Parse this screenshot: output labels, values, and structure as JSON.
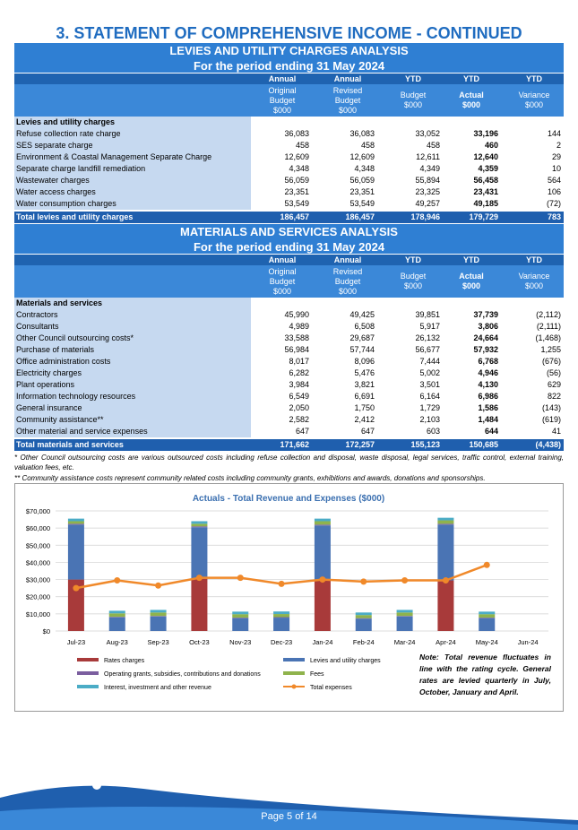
{
  "header": {
    "title": "3. STATEMENT OF COMPREHENSIVE INCOME - CONTINUED"
  },
  "tables": [
    {
      "title": "LEVIES AND UTILITY CHARGES ANALYSIS",
      "subtitle": "For the period ending 31 May 2024",
      "column_groups": [
        "Annual",
        "Annual",
        "YTD",
        "YTD",
        "YTD"
      ],
      "columns": [
        [
          "Original",
          "Budget",
          "$000"
        ],
        [
          "Revised",
          "Budget",
          "$000"
        ],
        [
          "Budget",
          "$000"
        ],
        [
          "Actual",
          "$000"
        ],
        [
          "Variance",
          "$000"
        ]
      ],
      "section": "Levies and utility charges",
      "rows": [
        [
          "Refuse collection rate charge",
          "36,083",
          "36,083",
          "33,052",
          "33,196",
          "144"
        ],
        [
          "SES separate charge",
          "458",
          "458",
          "458",
          "460",
          "2"
        ],
        [
          "Environment & Coastal Management Separate Charge",
          "12,609",
          "12,609",
          "12,611",
          "12,640",
          "29"
        ],
        [
          "Separate charge landfill remediation",
          "4,348",
          "4,348",
          "4,349",
          "4,359",
          "10"
        ],
        [
          "Wastewater charges",
          "56,059",
          "56,059",
          "55,894",
          "56,458",
          "564"
        ],
        [
          "Water access charges",
          "23,351",
          "23,351",
          "23,325",
          "23,431",
          "106"
        ],
        [
          "Water consumption charges",
          "53,549",
          "53,549",
          "49,257",
          "49,185",
          "(72)"
        ]
      ],
      "total": [
        "Total levies and utility charges",
        "186,457",
        "186,457",
        "178,946",
        "179,729",
        "783"
      ]
    },
    {
      "title": "MATERIALS AND SERVICES ANALYSIS",
      "subtitle": "For the period ending 31 May 2024",
      "column_groups": [
        "Annual",
        "Annual",
        "YTD",
        "YTD",
        "YTD"
      ],
      "columns": [
        [
          "Original",
          "Budget",
          "$000"
        ],
        [
          "Revised",
          "Budget",
          "$000"
        ],
        [
          "Budget",
          "$000"
        ],
        [
          "Actual",
          "$000"
        ],
        [
          "Variance",
          "$000"
        ]
      ],
      "section": "Materials and services",
      "rows": [
        [
          "Contractors",
          "45,990",
          "49,425",
          "39,851",
          "37,739",
          "(2,112)"
        ],
        [
          "Consultants",
          "4,989",
          "6,508",
          "5,917",
          "3,806",
          "(2,111)"
        ],
        [
          "Other Council outsourcing costs*",
          "33,588",
          "29,687",
          "26,132",
          "24,664",
          "(1,468)"
        ],
        [
          "Purchase of materials",
          "56,984",
          "57,744",
          "56,677",
          "57,932",
          "1,255"
        ],
        [
          "Office administration costs",
          "8,017",
          "8,096",
          "7,444",
          "6,768",
          "(676)"
        ],
        [
          "Electricity charges",
          "6,282",
          "5,476",
          "5,002",
          "4,946",
          "(56)"
        ],
        [
          "Plant operations",
          "3,984",
          "3,821",
          "3,501",
          "4,130",
          "629"
        ],
        [
          "Information technology resources",
          "6,549",
          "6,691",
          "6,164",
          "6,986",
          "822"
        ],
        [
          "General insurance",
          "2,050",
          "1,750",
          "1,729",
          "1,586",
          "(143)"
        ],
        [
          "Community assistance**",
          "2,582",
          "2,412",
          "2,103",
          "1,484",
          "(619)"
        ],
        [
          "Other material and service expenses",
          "647",
          "647",
          "603",
          "644",
          "41"
        ]
      ],
      "total": [
        "Total materials and services",
        "171,662",
        "172,257",
        "155,123",
        "150,685",
        "(4,438)"
      ]
    }
  ],
  "footnotes": [
    "* Other Council outsourcing costs are various outsourced costs including refuse collection and disposal, waste disposal, legal services, traffic control, external training, valuation fees, etc.",
    "** Community assistance costs represent community related costs including community grants, exhibitions and awards, donations and sponsorships."
  ],
  "chart": {
    "type": "bar",
    "stacked": true,
    "title": "Actuals - Total Revenue and Expenses ($000)",
    "categories": [
      "Jul-23",
      "Aug-23",
      "Sep-23",
      "Oct-23",
      "Nov-23",
      "Dec-23",
      "Jan-24",
      "Feb-24",
      "Mar-24",
      "Apr-24",
      "May-24",
      "Jun-24"
    ],
    "series": [
      {
        "name": "Rates charges",
        "color": "#a83a3a",
        "values": [
          30000,
          0,
          0,
          30500,
          0,
          0,
          30000,
          0,
          0,
          29500,
          0,
          null
        ]
      },
      {
        "name": "Levies and utility charges",
        "color": "#4a74b4",
        "values": [
          32000,
          8000,
          8500,
          30000,
          7500,
          7800,
          31500,
          7200,
          8500,
          32500,
          7500,
          null
        ]
      },
      {
        "name": "Operating grants, subsidies, contributions and donations",
        "color": "#7b5e9f",
        "values": [
          500,
          300,
          300,
          500,
          300,
          300,
          500,
          300,
          300,
          500,
          300,
          null
        ]
      },
      {
        "name": "Fees",
        "color": "#8fb34c",
        "values": [
          1500,
          2000,
          2000,
          1500,
          2000,
          1800,
          2000,
          1800,
          2000,
          2000,
          2000,
          null
        ]
      },
      {
        "name": "Interest, investment and other revenue",
        "color": "#4bacc6",
        "values": [
          1500,
          1500,
          1500,
          1500,
          1500,
          1500,
          1500,
          1500,
          1500,
          1500,
          1500,
          null
        ]
      },
      {
        "name": "Total expenses",
        "type": "line",
        "color": "#f0892a",
        "values": [
          25000,
          29500,
          26500,
          31000,
          31000,
          27500,
          30000,
          28800,
          29500,
          29500,
          38500,
          null
        ]
      }
    ],
    "ylim": [
      0,
      70000
    ],
    "yticks": [
      {
        "value": 0,
        "label": "$0"
      },
      {
        "value": 10000,
        "label": "$10,000"
      },
      {
        "value": 20000,
        "label": "$20,000"
      },
      {
        "value": 30000,
        "label": "$30,000"
      },
      {
        "value": 40000,
        "label": "$40,000"
      },
      {
        "value": 50000,
        "label": "$50,000"
      },
      {
        "value": 60000,
        "label": "$60,000"
      },
      {
        "value": 70000,
        "label": "$70,000"
      }
    ],
    "grid": true,
    "note": "Note: Total revenue fluctuates in line with the rating cycle. General rates are levied quarterly in July, October, January and April."
  },
  "footer": {
    "page": "Page 5 of 14"
  }
}
